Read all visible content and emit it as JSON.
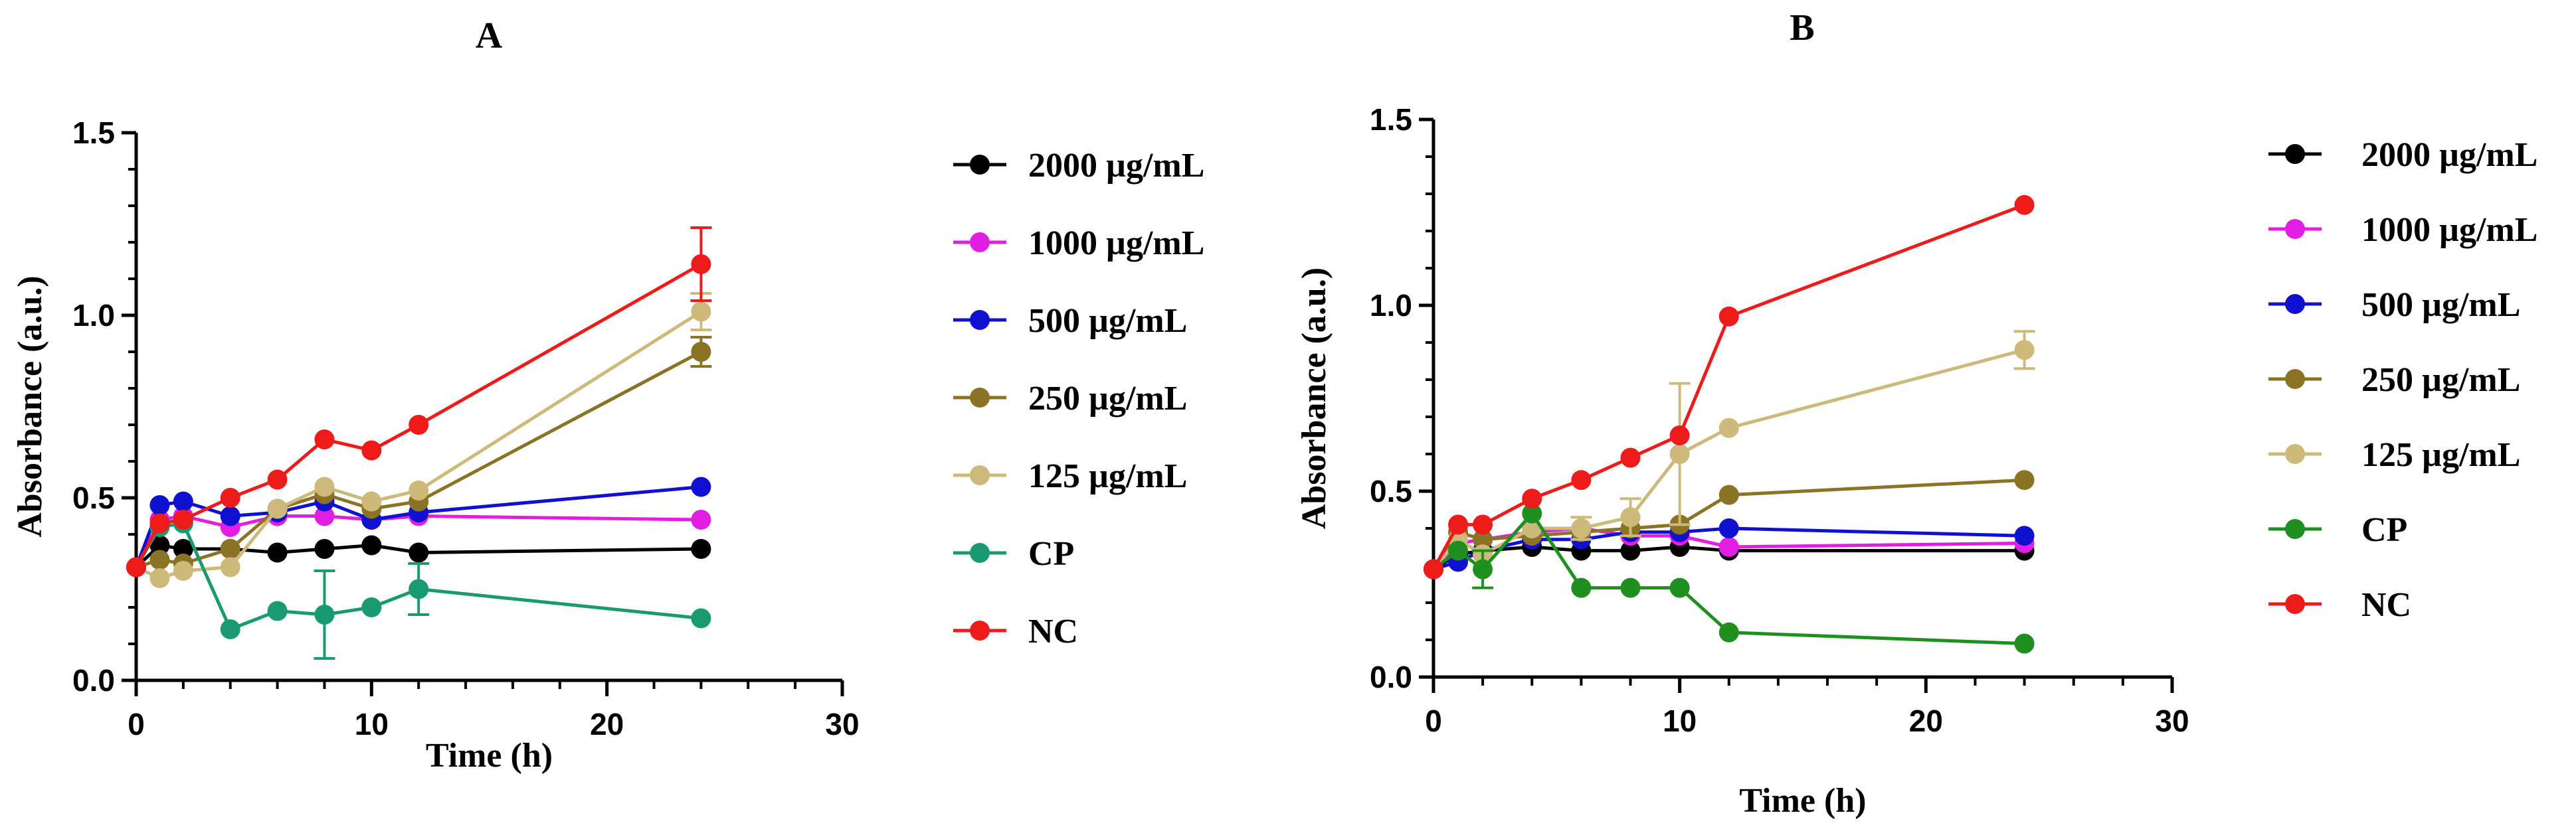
{
  "chart_data": [
    {
      "panel": "A",
      "type": "line",
      "title": "A",
      "xlabel": "Time (h)",
      "ylabel": "Absorbance (a.u.)",
      "xlim": [
        0,
        30
      ],
      "ylim": [
        0,
        1.5
      ],
      "xticks": [
        0,
        10,
        20,
        30
      ],
      "yticks": [
        0.0,
        0.5,
        1.0,
        1.5
      ],
      "xtick_labels": [
        "0",
        "10",
        "20",
        "30"
      ],
      "ytick_labels": [
        "0.0",
        "0.5",
        "1.0",
        "1.5"
      ],
      "grid": false,
      "legend_position": "right",
      "x": [
        0,
        1,
        2,
        4,
        6,
        8,
        10,
        12,
        24
      ],
      "series": [
        {
          "name": "2000 µg/mL",
          "color": "#000000",
          "values": [
            0.31,
            0.37,
            0.36,
            0.36,
            0.35,
            0.36,
            0.37,
            0.35,
            0.36
          ],
          "errors": [
            0,
            0,
            0,
            0,
            0,
            0,
            0,
            0,
            0
          ]
        },
        {
          "name": "1000 µg/mL",
          "color": "#e21ee2",
          "values": [
            0.31,
            0.44,
            0.45,
            0.42,
            0.45,
            0.45,
            0.44,
            0.45,
            0.44
          ],
          "errors": [
            0,
            0,
            0,
            0,
            0,
            0,
            0,
            0,
            0
          ]
        },
        {
          "name": "500 µg/mL",
          "color": "#1010d0",
          "values": [
            0.31,
            0.48,
            0.49,
            0.45,
            0.46,
            0.49,
            0.44,
            0.46,
            0.53
          ],
          "errors": [
            0,
            0,
            0,
            0,
            0,
            0,
            0,
            0,
            0
          ]
        },
        {
          "name": "250 µg/mL",
          "color": "#8b7325",
          "values": [
            0.31,
            0.33,
            0.32,
            0.36,
            0.47,
            0.51,
            0.47,
            0.49,
            0.9
          ],
          "errors": [
            0,
            0,
            0,
            0,
            0,
            0,
            0,
            0,
            0.04
          ]
        },
        {
          "name": "125 µg/mL",
          "color": "#cdba7a",
          "values": [
            0.31,
            0.28,
            0.3,
            0.31,
            0.47,
            0.53,
            0.49,
            0.52,
            1.01
          ],
          "errors": [
            0,
            0,
            0,
            0,
            0,
            0,
            0,
            0,
            0.05
          ]
        },
        {
          "name": "CP",
          "color": "#1a9a70",
          "values": [
            0.31,
            0.42,
            0.43,
            0.14,
            0.19,
            0.18,
            0.2,
            0.25,
            0.17
          ],
          "errors": [
            0,
            0,
            0,
            0,
            0,
            0.12,
            0,
            0.07,
            0
          ]
        },
        {
          "name": "NC",
          "color": "#ee1b1b",
          "values": [
            0.31,
            0.43,
            0.44,
            0.5,
            0.55,
            0.66,
            0.63,
            0.7,
            1.14
          ],
          "errors": [
            0,
            0,
            0,
            0,
            0,
            0,
            0,
            0,
            0.1
          ]
        }
      ]
    },
    {
      "panel": "B",
      "type": "line",
      "title": "B",
      "xlabel": "Time (h)",
      "ylabel": "Absorbance (a.u.)",
      "xlim": [
        0,
        30
      ],
      "ylim": [
        0,
        1.5
      ],
      "xticks": [
        0,
        10,
        20,
        30
      ],
      "yticks": [
        0.0,
        0.5,
        1.0,
        1.5
      ],
      "xtick_labels": [
        "0",
        "10",
        "20",
        "30"
      ],
      "ytick_labels": [
        "0.0",
        "0.5",
        "1.0",
        "1.5"
      ],
      "grid": false,
      "legend_position": "right",
      "x": [
        0,
        1,
        2,
        4,
        6,
        8,
        10,
        12,
        24
      ],
      "series": [
        {
          "name": "2000 µg/mL",
          "color": "#000000",
          "values": [
            0.29,
            0.33,
            0.34,
            0.35,
            0.34,
            0.34,
            0.35,
            0.34,
            0.34
          ],
          "errors": [
            0,
            0,
            0,
            0,
            0,
            0,
            0,
            0,
            0
          ]
        },
        {
          "name": "1000 µg/mL",
          "color": "#e21ee2",
          "values": [
            0.29,
            0.36,
            0.37,
            0.39,
            0.4,
            0.38,
            0.38,
            0.35,
            0.36
          ],
          "errors": [
            0,
            0,
            0,
            0,
            0,
            0,
            0,
            0,
            0
          ]
        },
        {
          "name": "500 µg/mL",
          "color": "#1010d0",
          "values": [
            0.29,
            0.31,
            0.34,
            0.37,
            0.37,
            0.39,
            0.39,
            0.4,
            0.38
          ],
          "errors": [
            0,
            0,
            0,
            0,
            0,
            0,
            0,
            0,
            0
          ]
        },
        {
          "name": "250 µg/mL",
          "color": "#8b7325",
          "values": [
            0.29,
            0.39,
            0.37,
            0.38,
            0.39,
            0.4,
            0.41,
            0.49,
            0.53
          ],
          "errors": [
            0,
            0,
            0,
            0,
            0,
            0,
            0,
            0,
            0
          ]
        },
        {
          "name": "125 µg/mL",
          "color": "#cdba7a",
          "values": [
            0.29,
            0.37,
            0.33,
            0.4,
            0.4,
            0.43,
            0.6,
            0.67,
            0.88
          ],
          "errors": [
            0,
            0,
            0,
            0,
            0.03,
            0.05,
            0.19,
            0,
            0.05
          ]
        },
        {
          "name": "CP",
          "color": "#1f8f1f",
          "values": [
            0.29,
            0.34,
            0.29,
            0.44,
            0.24,
            0.24,
            0.24,
            0.12,
            0.09
          ],
          "errors": [
            0,
            0,
            0.05,
            0,
            0,
            0,
            0,
            0,
            0
          ]
        },
        {
          "name": "NC",
          "color": "#ee1b1b",
          "values": [
            0.29,
            0.41,
            0.41,
            0.48,
            0.53,
            0.59,
            0.65,
            0.97,
            1.27
          ],
          "errors": [
            0,
            0,
            0,
            0,
            0,
            0,
            0,
            0,
            0
          ]
        }
      ]
    }
  ]
}
